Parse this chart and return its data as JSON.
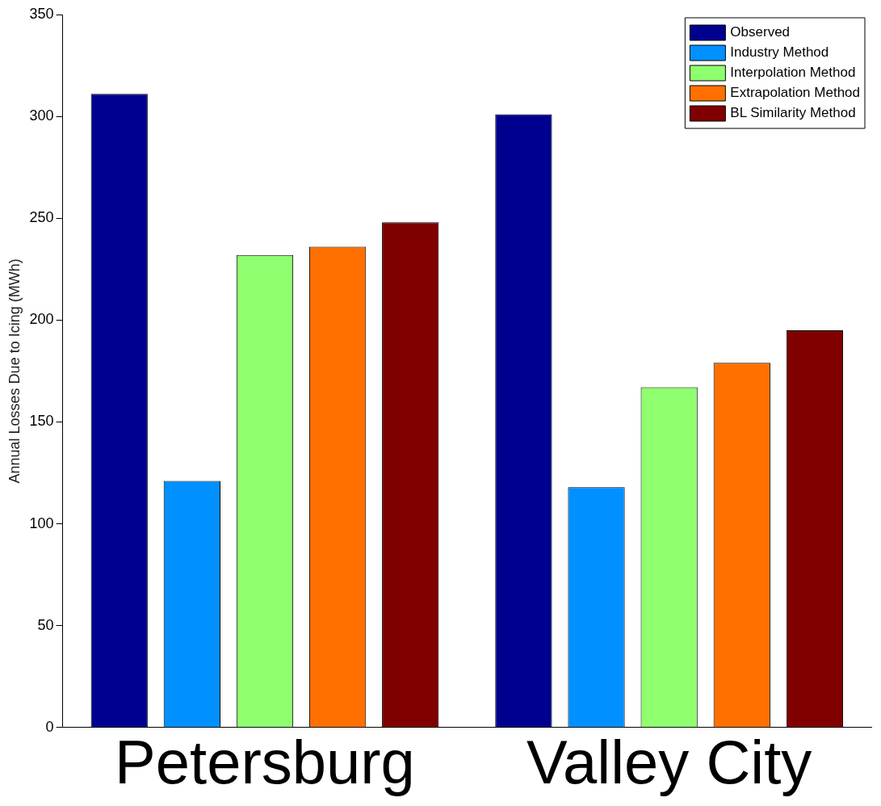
{
  "chart_data": {
    "type": "bar",
    "ylabel": "Annual Losses Due to Icing (MWh)",
    "categories": [
      "Petersburg",
      "Valley City"
    ],
    "series": [
      {
        "name": "Observed",
        "color": "#00008f",
        "values": [
          311,
          301
        ]
      },
      {
        "name": "Industry Method",
        "color": "#0090ff",
        "values": [
          121,
          118
        ]
      },
      {
        "name": "Interpolation Method",
        "color": "#8fff70",
        "values": [
          232,
          167
        ]
      },
      {
        "name": "Extrapolation Method",
        "color": "#ff7000",
        "values": [
          236,
          179
        ]
      },
      {
        "name": "BL Similarity Method",
        "color": "#800000",
        "values": [
          248,
          195
        ]
      }
    ],
    "ylim": [
      0,
      350
    ],
    "yticks": [
      0,
      50,
      100,
      150,
      200,
      250,
      300,
      350
    ],
    "grid": false,
    "legend": "top right"
  }
}
